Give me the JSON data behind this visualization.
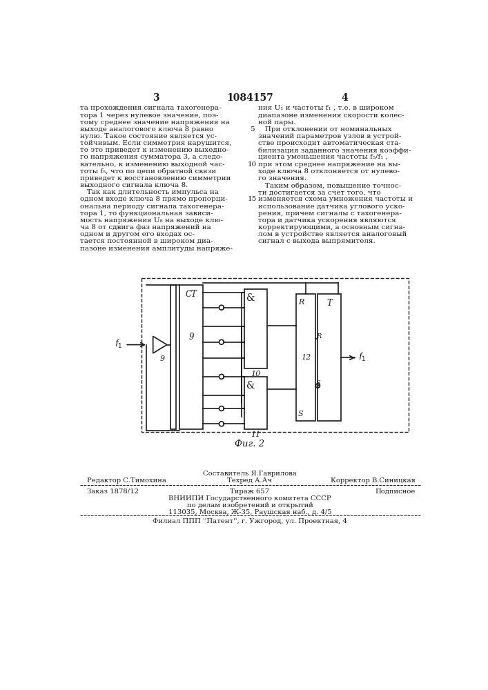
{
  "page_color": "#ffffff",
  "text_color": "#1a1a1a",
  "header_num_left": "3",
  "header_num_center": "1084157",
  "header_num_right": "4",
  "col_left_text": [
    "та прохождения сигнала тахогенера-",
    "тора 1 через нулевое значение, поэ-",
    "тому среднее значение напряжения на",
    "выходе аналогового ключа 8 равно",
    "нулю. Такое состояние является ус-",
    "тойчивым. Если симметрия нарушится,",
    "то это приведет к изменению выходно-",
    "го напряжения сумматора 3, а следо-",
    "вательно, к изменению выходной час-",
    "тоты f₅, что по цепи обратной связи",
    "приведет к восстановлению симметрии",
    "выходного сигнала ключа 8.",
    "   Так как длительность импульса на",
    "одном входе ключа 8 прямо пропорци-",
    "ональна периоду сигнала тахогенера-",
    "тора 1, то функциональная зависи-",
    "мость напряжения U₈ на выходе клю-",
    "ча 8 от сдвига фаз напряжений на",
    "одном и другом его входах ос-",
    "тается постоянной в широком диа-",
    "пазоне изменения амплитуды напряже-"
  ],
  "col_right_text": [
    "ния U₁ и частоты f₁ , т.е. в широком",
    "диапазоне изменения скорости колес-",
    "ной пары.",
    "   При отклонении от номинальных",
    "значений параметров узлов в устрой-",
    "стве происходит автоматическая ста-",
    "билизация заданного значения коэффи-",
    "циента уменьшения частоты f₅/f₁ ,",
    "при этом среднее напряжение на вы-",
    "ходе ключа 8 отклоняется от нулево-",
    "го значения.",
    "   Таким образом, повышение точнос-",
    "ти достигается за счет того, что",
    "изменяется схема умножения частоты и",
    "использование датчика углового уско-",
    "рения, причем сигналы с тахогенера-",
    "тора и датчика ускорения являются",
    "корректирующими, а основным сигна-",
    "лом в устройстве является аналоговый",
    "сигнал с выхода выпрямителя."
  ],
  "fig_caption": "Фиг. 2",
  "footer_row1_left": "Редактор С.Тимохина",
  "footer_row1_center_top": "Составитель Я.Гаврилова",
  "footer_row1_center": "Техред А.Ач",
  "footer_row1_right": "Корректор В.Синицкая",
  "footer_row2_left": "Заказ 1878/12",
  "footer_row2_center": "Тираж 657",
  "footer_row2_right": "Подписное",
  "footer_row3": "ВНИИПИ Государственного комитета СССР",
  "footer_row4": "по делам изобретений и открытий",
  "footer_row5": "113035, Москва, Ж-35, Раушская наб., д. 4/5",
  "footer_row6": "Филиал ППП ''Патент'', г. Ужгород, ул. Проектная, 4"
}
